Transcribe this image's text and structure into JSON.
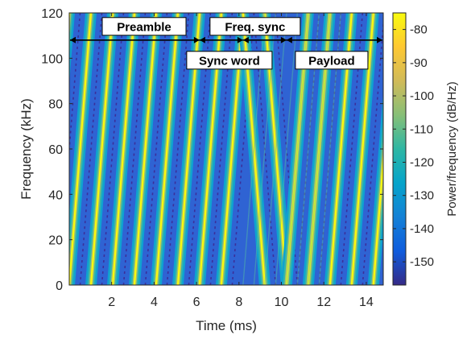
{
  "chart_data": {
    "type": "heatmap",
    "subtype": "spectrogram",
    "xlabel": "Time (ms)",
    "ylabel": "Frequency (kHz)",
    "xlim": [
      0,
      14.8
    ],
    "ylim": [
      0,
      120
    ],
    "x_ticks": [
      "2",
      "4",
      "6",
      "8",
      "10",
      "12",
      "14"
    ],
    "x_tick_values": [
      2,
      4,
      6,
      8,
      10,
      12,
      14
    ],
    "y_ticks": [
      "0",
      "20",
      "40",
      "60",
      "80",
      "100",
      "120"
    ],
    "y_tick_values": [
      0,
      20,
      40,
      60,
      80,
      100,
      120
    ],
    "colorbar": {
      "label": "Power/frequency (dB/Hz)",
      "range": [
        -157,
        -75
      ],
      "ticks": [
        "-80",
        "-90",
        "-100",
        "-110",
        "-120",
        "-130",
        "-140",
        "-150"
      ],
      "tick_values": [
        -80,
        -90,
        -100,
        -110,
        -120,
        -130,
        -140,
        -150
      ],
      "colormap": "parula"
    },
    "chirp_period_ms": 1.024,
    "sync_symbols": [
      {
        "start_ms": 6.144,
        "end_ms": 8.192
      },
      {
        "start_ms": 8.192,
        "end_ms": 10.24,
        "direction": "down"
      }
    ],
    "annotations": [
      {
        "id": "preamble",
        "text": "Preamble",
        "start_ms": 0,
        "end_ms": 6.144,
        "y_khz": 108
      },
      {
        "id": "sync-word",
        "text": "Sync word",
        "start_ms": 6.144,
        "end_ms": 8.192,
        "y_khz": 108
      },
      {
        "id": "freq-sync",
        "text": "Freq. sync",
        "start_ms": 8.192,
        "end_ms": 10.24,
        "y_khz": 108
      },
      {
        "id": "payload",
        "text": "Payload",
        "start_ms": 10.24,
        "end_ms": 14.8,
        "y_khz": 108
      }
    ],
    "grid": false
  },
  "colors": {
    "background": "#352a87",
    "low": "#3a43c8",
    "mid": "#1fb0b6",
    "high": "#f9fb0e",
    "axis": "#262626"
  }
}
